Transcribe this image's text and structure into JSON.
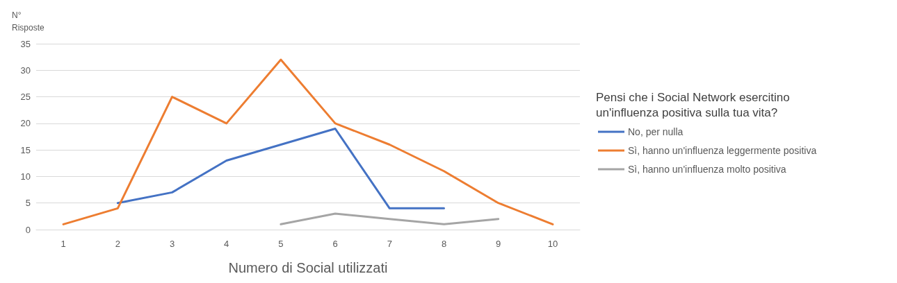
{
  "chart_data": {
    "type": "line",
    "ylabel": "N° Risposte",
    "xlabel": "Numero di Social utilizzati",
    "legend_title": "Pensi che i Social Network esercitino un'influenza positiva sulla tua vita?",
    "categories": [
      "1",
      "2",
      "3",
      "4",
      "5",
      "6",
      "7",
      "8",
      "9",
      "10"
    ],
    "series": [
      {
        "name": "No, per nulla",
        "color": "#4472c4",
        "values": [
          null,
          5,
          7,
          13,
          16,
          19,
          4,
          4,
          null,
          null
        ]
      },
      {
        "name": "Sì, hanno un'influenza leggermente positiva",
        "color": "#ed7d31",
        "values": [
          1,
          4,
          25,
          20,
          32,
          20,
          16,
          11,
          5,
          1
        ]
      },
      {
        "name": "Sì, hanno un'influenza molto positiva",
        "color": "#a5a5a5",
        "values": [
          null,
          null,
          null,
          null,
          1,
          3,
          2,
          1,
          2,
          null
        ]
      }
    ],
    "ylim": [
      0,
      35
    ],
    "yticks": [
      0,
      5,
      10,
      15,
      20,
      25,
      30,
      35
    ],
    "grid": "y",
    "legend": "right",
    "marker": "none",
    "line_style": "solid"
  }
}
